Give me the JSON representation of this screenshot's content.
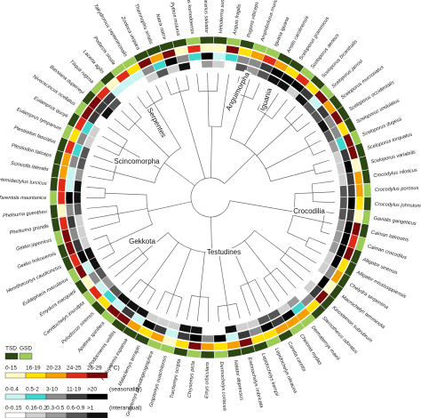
{
  "clades": [
    {
      "label": "Crocodilia",
      "species": [
        "Crocodylus niloticus",
        "Crocodylus porosus",
        "Crocodylus johnstoni",
        "Gavialis gangeticus",
        "Caiman latirostris",
        "Caiman crocodilus",
        "Alligator sinensis",
        "Alligator mississippiensis"
      ]
    },
    {
      "label": "Testudines",
      "species": [
        "Chelydra serpentina",
        "Macrochelys temminckii",
        "Kinosternon subrubrum",
        "Sternotherus odoratus",
        "Dermatemys mawii",
        "Chelonia mydas",
        "Caretta caretta",
        "Lepidochelys olivacea",
        "Lepidochelys kempii",
        "Eretmochelys imbricata",
        "Natator depressus",
        "Dermochelys coriacea",
        "Emys orbicularis",
        "Chrysemys picta",
        "Trachemys scripta",
        "Graptemys ouachitensis",
        "Graptemys pseudogeographica",
        "Malaclemys terrapin",
        "Podocnemis expansa",
        "Podocnemis unifilis",
        "Apalone spinifera",
        "Pelodiscus sinensis",
        "Carettochelys insculpta",
        "Emydura macquarii"
      ]
    },
    {
      "label": "Gekkota",
      "species": [
        "Eublepharis macularius",
        "Hemitheconyx caudicinctus",
        "Gekko hokouensis",
        "Gekko japonicus",
        "Phelsuma grandis",
        "Phelsuma guentheri",
        "Tarentola mauritanica",
        "Hemidactylus turcicus"
      ]
    },
    {
      "label": "Scincomorpha",
      "species": [
        "Scincella lateralis",
        "Plestiodon laticeps",
        "Plestiodon fasciatus",
        "Eulamprus tympanum",
        "Eulamprus quoyii",
        "Niveoscincus ocellatus",
        "Bassiana duperreyi",
        "Tiliqua rugosa",
        "Lacerta agilis",
        "Podarcis sicula",
        "Takydromus septentrionalis",
        "Zootoca vivipara"
      ]
    },
    {
      "label": "Serpentes",
      "species": [
        "Thamnophis sirtalis",
        "Natrix natrix",
        "Python molurus"
      ]
    },
    {
      "label": "Anguimorpha",
      "species": [
        "Varanus komodoensis",
        "Varanus salvator",
        "Heloderma suspectum",
        "Anguis fragilis"
      ]
    },
    {
      "label": "Iguania",
      "species": [
        "Pogona vitticeps",
        "Amphibolurus muricatus",
        "Iguana iguana",
        "Anolis carolinensis",
        "Sceloporus grammicus",
        "Sceloporus aeneus",
        "Sceloporus bicanthalis",
        "Sceloporus jarrovi",
        "Sceloporus mucronatus",
        "Sceloporus occidentalis",
        "Sceloporus undulatus",
        "Sceloporus dugesii",
        "Sceloporus torquatus",
        "Sceloporus variabilis"
      ]
    }
  ],
  "legend": {
    "sex": [
      "TSD",
      "GSD"
    ],
    "temperature": {
      "labels": [
        "0-15",
        "16-19",
        "20-23",
        "24-25",
        "26-29"
      ],
      "unit": "(°C)"
    },
    "seasonality": {
      "labels": [
        "0-0.4",
        "0.5-2",
        "3-10",
        "11-19",
        ">20"
      ],
      "unit": "(seasonality)"
    },
    "interannual": {
      "labels": [
        "0-0.15",
        "0.16-0.2",
        "0.3-0.5",
        "0.6-0.9",
        ">1"
      ],
      "unit": "(interannual)"
    }
  }
}
